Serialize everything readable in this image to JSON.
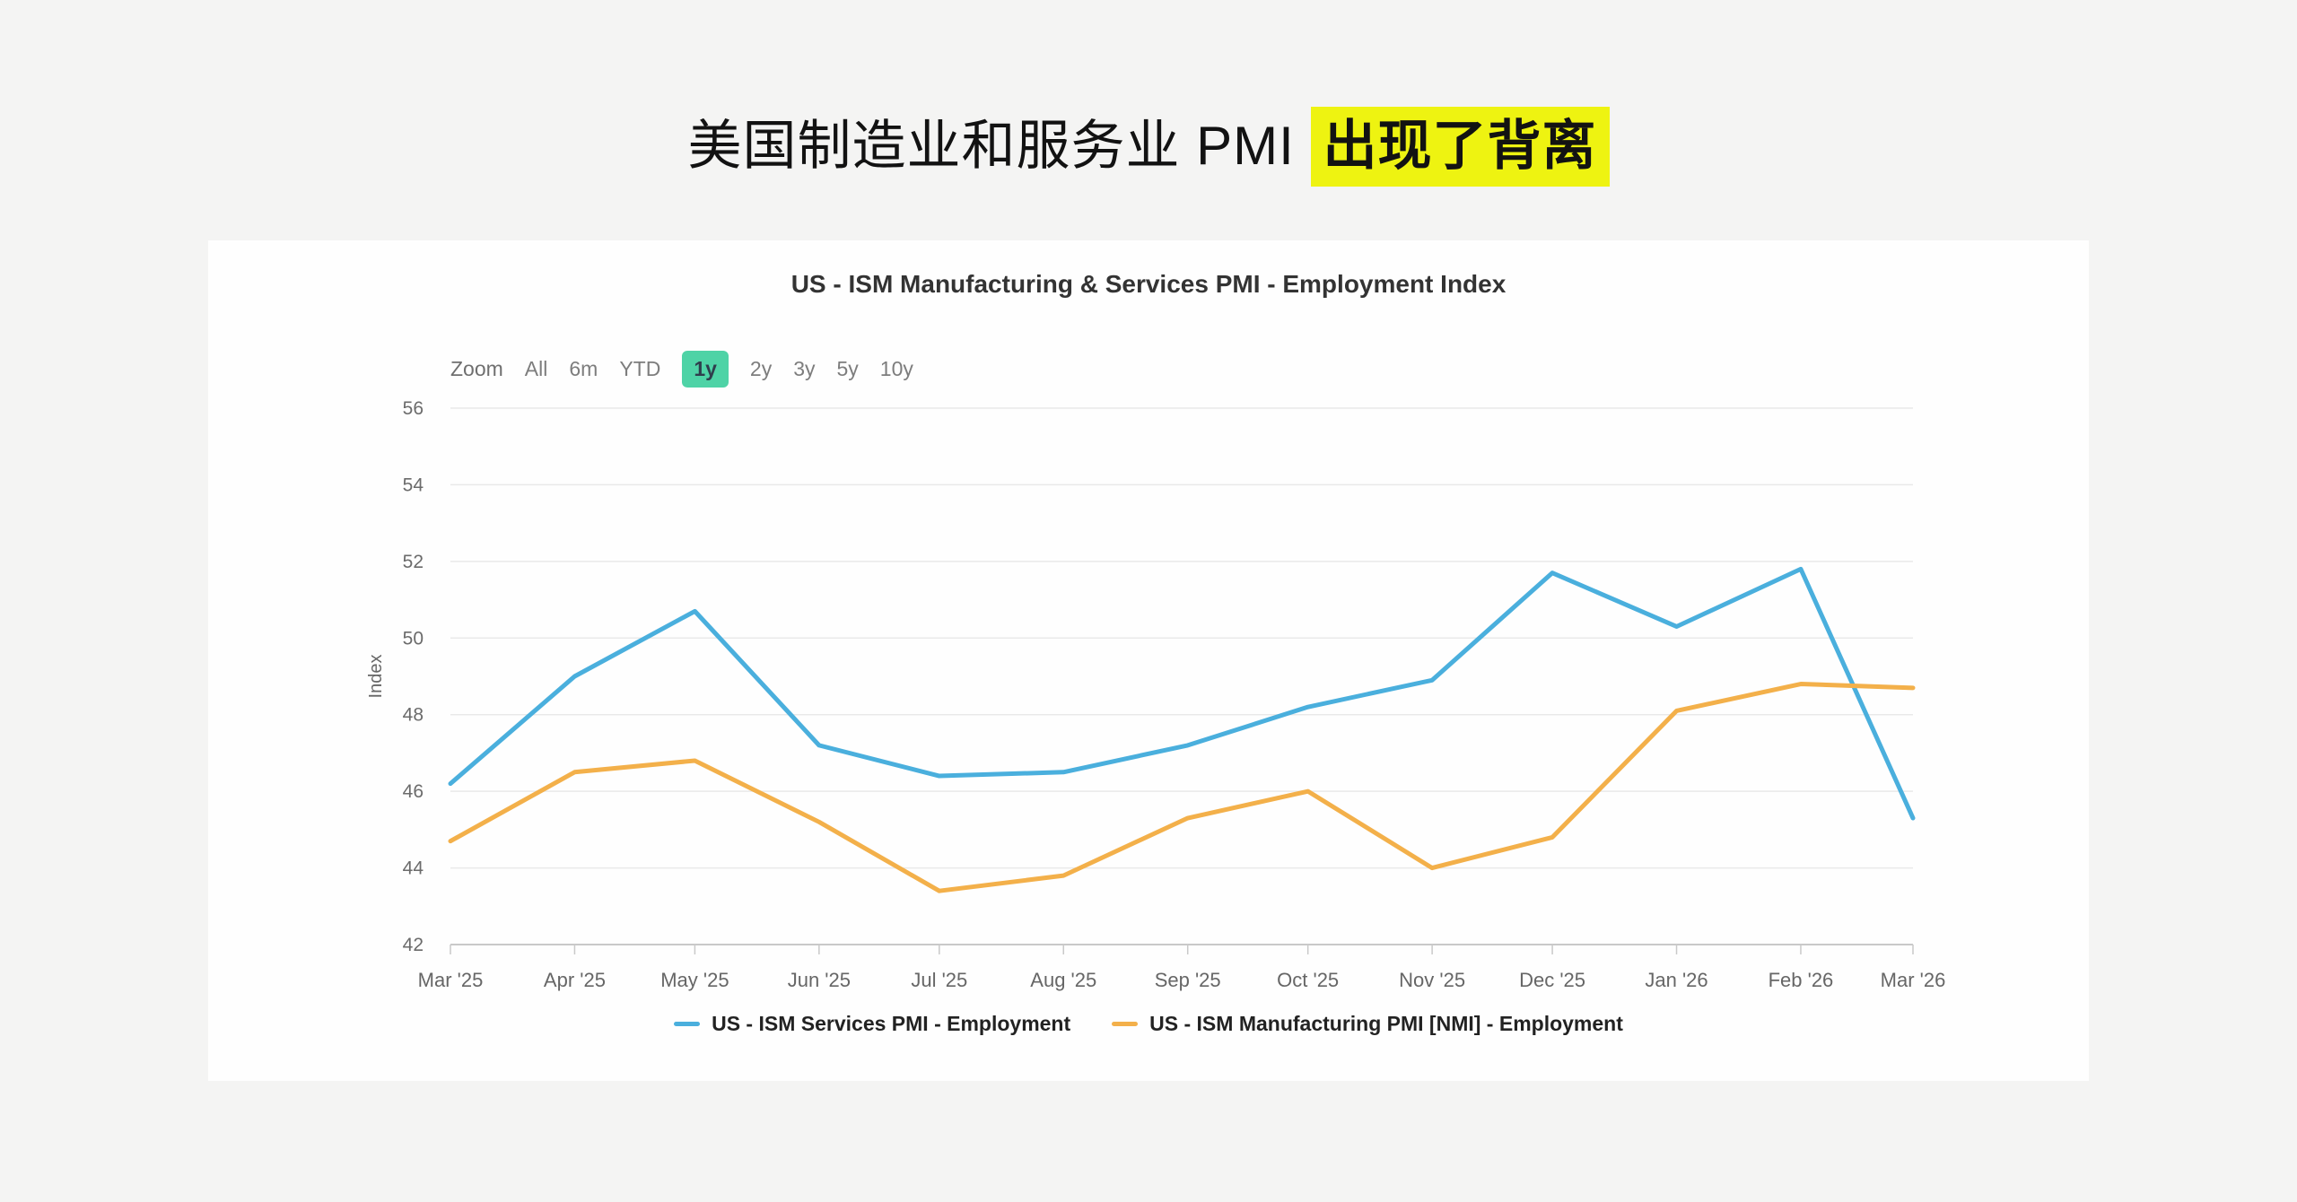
{
  "headline": {
    "normal": "美国制造业和服务业 PMI ",
    "highlight": "出现了背离",
    "highlight_color": "#eef311"
  },
  "panel": {
    "title": "US - ISM Manufacturing & Services PMI - Employment Index",
    "toolbar": {
      "zoom_label": "Zoom",
      "buttons": [
        {
          "label": "All",
          "selected": false
        },
        {
          "label": "6m",
          "selected": false
        },
        {
          "label": "YTD",
          "selected": false
        },
        {
          "label": "1y",
          "selected": true
        },
        {
          "label": "2y",
          "selected": false
        },
        {
          "label": "3y",
          "selected": false
        },
        {
          "label": "5y",
          "selected": false
        },
        {
          "label": "10y",
          "selected": false
        }
      ],
      "selected_bg_color": "#4ed3a6"
    }
  },
  "chart_data": {
    "type": "line",
    "title": "US - ISM Manufacturing & Services PMI - Employment Index",
    "xlabel": "",
    "ylabel": "Index",
    "ylim": [
      42,
      56
    ],
    "ytick_step": 2,
    "grid": true,
    "legend_position": "bottom",
    "categories": [
      "Mar '25",
      "Apr '25",
      "May '25",
      "Jun '25",
      "Jul '25",
      "Aug '25",
      "Sep '25",
      "Oct '25",
      "Nov '25",
      "Dec '25",
      "Jan '26",
      "Feb '26",
      "Mar '26"
    ],
    "x_day_offsets": [
      0,
      31,
      61,
      92,
      122,
      153,
      184,
      214,
      245,
      275,
      306,
      337,
      365
    ],
    "x_total_days": 365,
    "series": [
      {
        "name": "US - ISM Services PMI - Employment",
        "color": "#4aafdd",
        "values": [
          46.2,
          49.0,
          50.7,
          47.2,
          46.4,
          46.5,
          47.2,
          48.2,
          48.9,
          51.7,
          50.3,
          51.8,
          45.3
        ]
      },
      {
        "name": "US - ISM Manufacturing PMI [NMI] - Employment",
        "color": "#f3b04a",
        "values": [
          44.7,
          46.5,
          46.8,
          45.2,
          43.4,
          43.8,
          45.3,
          46.0,
          44.0,
          44.8,
          48.1,
          48.8,
          48.7
        ]
      }
    ],
    "colors": {
      "gridline": "#e9e9e9",
      "axis_line": "#c9c9c9",
      "axis_text": "#666666"
    }
  }
}
